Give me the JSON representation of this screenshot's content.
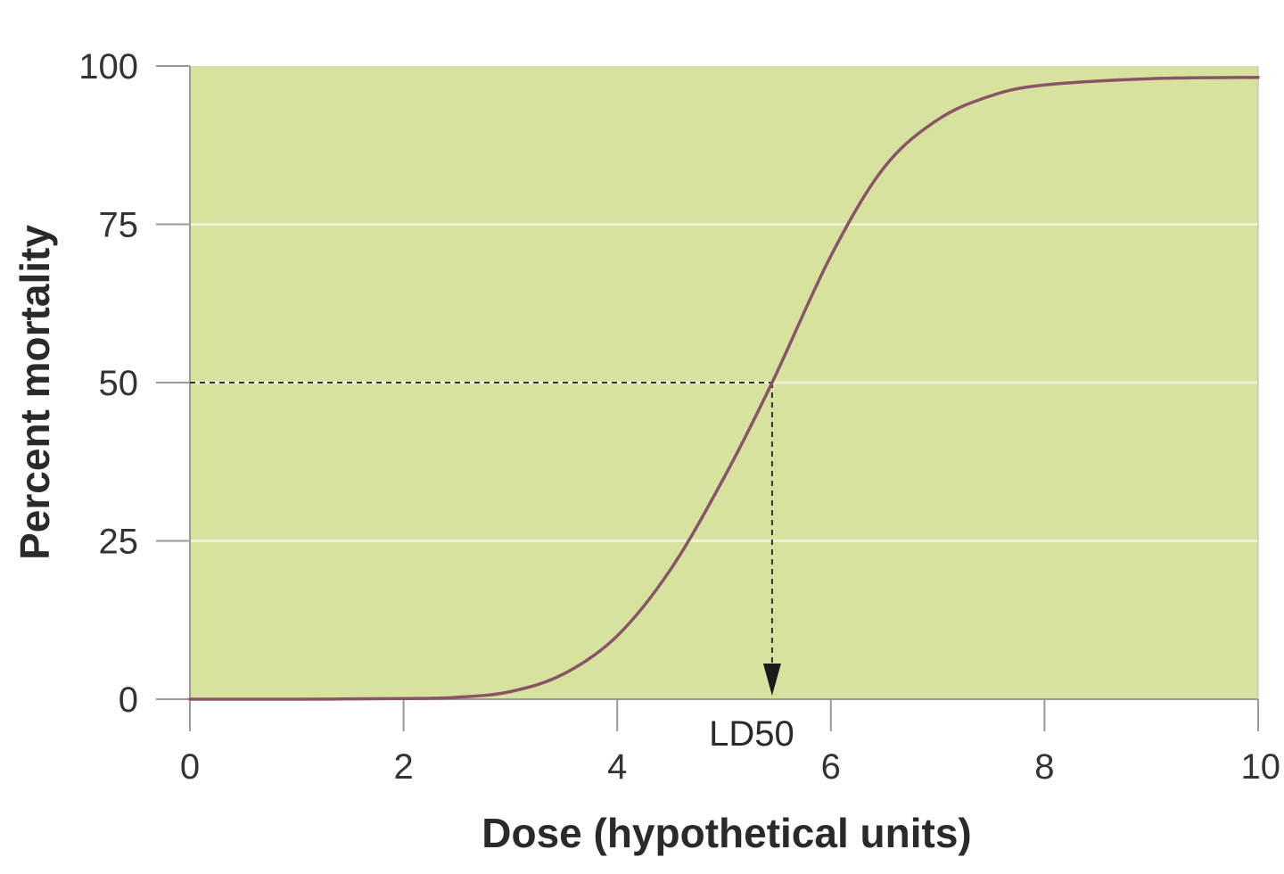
{
  "chart_data": {
    "type": "line",
    "xlabel": "Dose (hypothetical units)",
    "ylabel": "Percent mortality",
    "xlim": [
      0,
      10
    ],
    "ylim": [
      0,
      100
    ],
    "xticks": [
      "0",
      "2",
      "4",
      "6",
      "8",
      "10"
    ],
    "yticks": [
      "0",
      "25",
      "50",
      "75",
      "100"
    ],
    "grid": "horizontal",
    "series": [
      {
        "color": "#8a5468",
        "x": [
          0,
          1,
          2,
          2.5,
          3,
          3.5,
          4,
          4.5,
          5,
          5.45,
          6,
          6.5,
          7,
          7.5,
          8,
          9,
          10
        ],
        "y": [
          0,
          0,
          0.1,
          0.3,
          1.2,
          4,
          10,
          20.5,
          35,
          50,
          70,
          84,
          91.5,
          95.3,
          97,
          98,
          98.2
        ]
      }
    ],
    "annotations": [
      {
        "label": "LD50",
        "x": 5.45,
        "y": 50
      }
    ],
    "colors": {
      "plot_background": "#d6e29e",
      "gridline": "#eef2d4",
      "axis": "#9a9a9a",
      "guide": "#333333"
    }
  }
}
